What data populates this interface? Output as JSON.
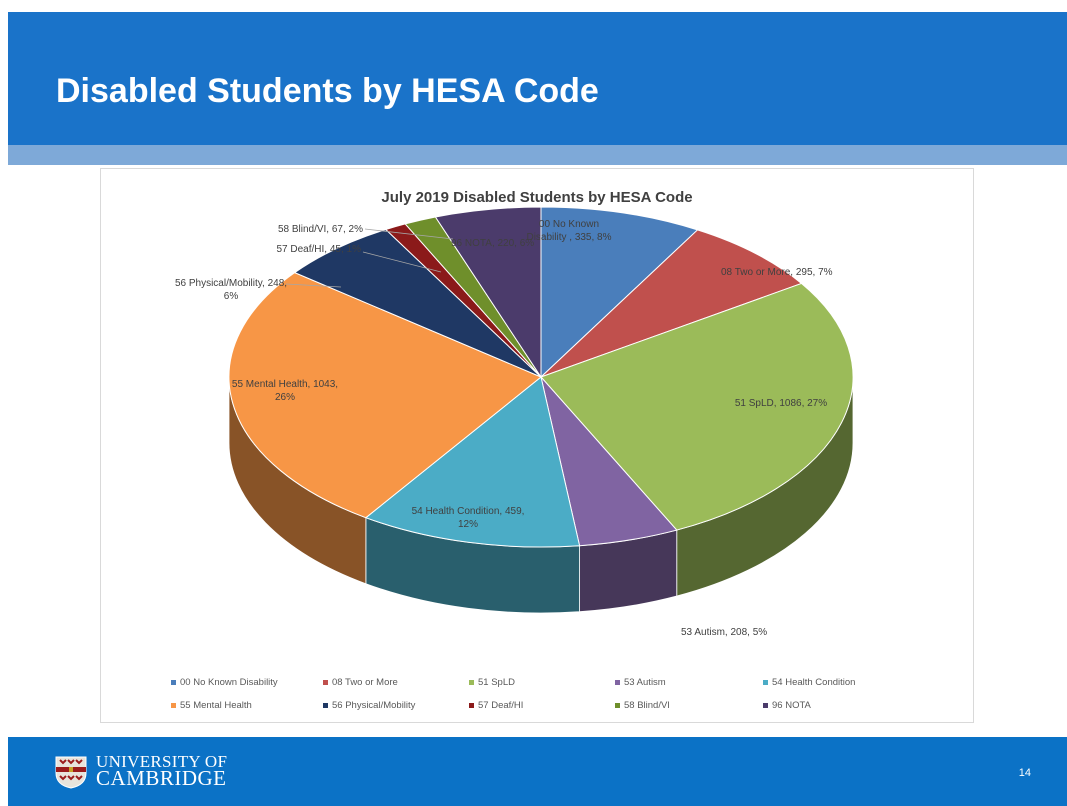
{
  "slide": {
    "title": "Disabled Students by HESA Code",
    "page_number": "14"
  },
  "footer": {
    "university_line1": "UNIVERSITY OF",
    "university_line2": "CAMBRIDGE",
    "logo_icon": "cambridge-crest-icon"
  },
  "chart_data": {
    "type": "pie",
    "title": "July 2019 Disabled Students by HESA Code",
    "three_d": true,
    "legend_placement": "bottom",
    "slices": [
      {
        "name": "00 No Known Disability",
        "value": 335,
        "percent": "8%",
        "label": "00 No Known Disability , 335, 8%",
        "color": "#4a7ebb"
      },
      {
        "name": "08 Two or More",
        "value": 295,
        "percent": "7%",
        "label": "08 Two or More, 295, 7%",
        "color": "#c0504d"
      },
      {
        "name": "51 SpLD",
        "value": 1086,
        "percent": "27%",
        "label": "51 SpLD, 1086, 27%",
        "color": "#9bbb59"
      },
      {
        "name": "53 Autism",
        "value": 208,
        "percent": "5%",
        "label": "53 Autism, 208, 5%",
        "color": "#8064a2"
      },
      {
        "name": "54 Health Condition",
        "value": 459,
        "percent": "12%",
        "label": "54 Health Condition, 459, 12%",
        "color": "#4bacc6"
      },
      {
        "name": "55 Mental Health",
        "value": 1043,
        "percent": "26%",
        "label": "55 Mental Health, 1043, 26%",
        "color": "#f79646"
      },
      {
        "name": "56 Physical/Mobility",
        "value": 248,
        "percent": "6%",
        "label": "56 Physical/Mobility, 248, 6%",
        "color": "#1f3864"
      },
      {
        "name": "57 Deaf/HI",
        "value": 45,
        "percent": "1%",
        "label": "57 Deaf/HI, 45, 1%",
        "color": "#8b1a1a"
      },
      {
        "name": "58 Blind/VI",
        "value": 67,
        "percent": "2%",
        "label": "58 Blind/VI, 67, 2%",
        "color": "#6f8f2b"
      },
      {
        "name": "96 NOTA",
        "value": 220,
        "percent": "6%",
        "label": "96 NOTA, 220, 6%",
        "color": "#4b3b6b"
      }
    ]
  }
}
